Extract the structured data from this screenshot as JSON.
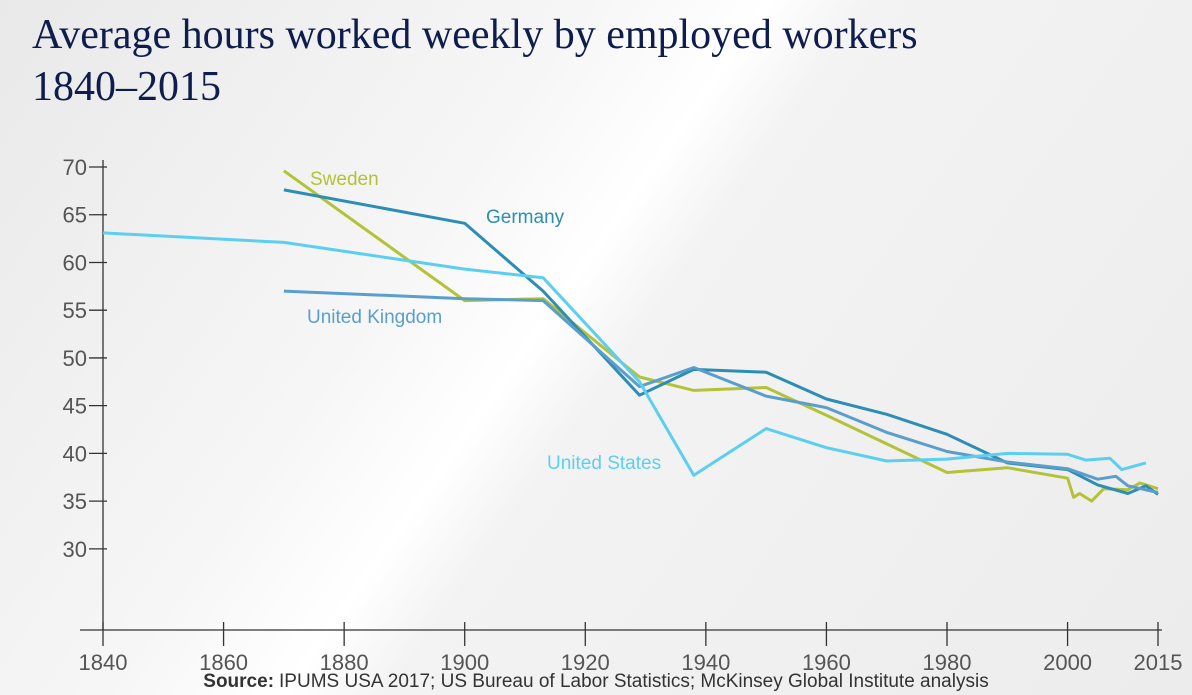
{
  "chart_data": {
    "type": "line",
    "title": "Average hours worked weekly by employed workers",
    "subtitle": "1840–2015",
    "source_label": "Source:",
    "source": "IPUMS USA 2017; US Bureau of Labor Statistics; McKinsey Global Institute analysis",
    "xlim": [
      1840,
      2015
    ],
    "xticks": [
      1840,
      1860,
      1880,
      1900,
      1920,
      1940,
      1960,
      1980,
      2000,
      2015
    ],
    "ylim": [
      21.5,
      70
    ],
    "yticks": [
      30,
      35,
      40,
      45,
      50,
      55,
      60,
      65,
      70
    ],
    "series": [
      {
        "name": "Sweden",
        "color": "#b3c236",
        "x": [
          1870,
          1900,
          1913,
          1929,
          1938,
          1950,
          1960,
          1980,
          1990,
          2000,
          2001,
          2002,
          2004,
          2006,
          2010,
          2012,
          2015
        ],
        "values": [
          69.6,
          56.0,
          56.2,
          48.0,
          46.6,
          46.9,
          44.0,
          38.0,
          38.5,
          37.4,
          35.4,
          35.8,
          35.0,
          36.3,
          36.2,
          36.9,
          36.3
        ]
      },
      {
        "name": "Germany",
        "color": "#2d8db4",
        "x": [
          1870,
          1900,
          1913,
          1929,
          1938,
          1950,
          1960,
          1970,
          1980,
          1990,
          2000,
          2005,
          2010,
          2013,
          2015
        ],
        "values": [
          67.6,
          64.1,
          57.0,
          46.1,
          48.8,
          48.5,
          45.7,
          44.1,
          42.0,
          39.0,
          38.3,
          36.7,
          35.8,
          36.6,
          35.7
        ]
      },
      {
        "name": "United Kingdom",
        "color": "#5a9ecd",
        "x": [
          1870,
          1900,
          1913,
          1929,
          1938,
          1950,
          1960,
          1970,
          1980,
          1990,
          2000,
          2005,
          2008,
          2010,
          2015
        ],
        "values": [
          57.0,
          56.2,
          56.0,
          47.0,
          49.0,
          46.0,
          44.8,
          42.2,
          40.2,
          39.1,
          38.4,
          37.3,
          37.6,
          36.6,
          35.9
        ]
      },
      {
        "name": "United States",
        "color": "#5ccff0",
        "x": [
          1840,
          1870,
          1900,
          1913,
          1929,
          1938,
          1950,
          1960,
          1970,
          1980,
          1990,
          2000,
          2003,
          2007,
          2009,
          2013
        ],
        "values": [
          63.1,
          62.1,
          59.3,
          58.4,
          47.5,
          37.7,
          42.6,
          40.6,
          39.2,
          39.4,
          40.0,
          39.9,
          39.3,
          39.5,
          38.3,
          39.0
        ]
      }
    ]
  }
}
